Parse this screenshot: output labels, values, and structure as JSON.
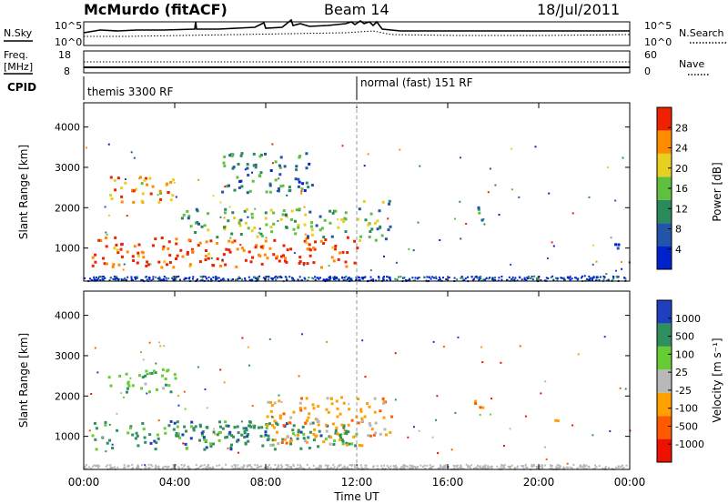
{
  "header": {
    "station": "McMurdo (fitACF)",
    "beam": "Beam 14",
    "date": "18/Jul/2011"
  },
  "noise_panel": {
    "left_label": "N.Sky",
    "right_label": "N.Search",
    "ytick_top_left": "10^5",
    "ytick_bottom_left": "10^0",
    "ytick_top_right": "10^5",
    "ytick_bottom_right": "10^0"
  },
  "freq_panel": {
    "left_label_line1": "Freq.",
    "left_label_line2": "[MHz]",
    "right_label": "Nave",
    "ytick_top_left": "18",
    "ytick_bottom_left": "8",
    "ytick_top_right": "60",
    "ytick_bottom_right": "0"
  },
  "cpid": {
    "label": "CPID",
    "segments": [
      {
        "text": "themis 3300 RF",
        "start_hour": 0
      },
      {
        "text": "normal (fast) 151 RF",
        "start_hour": 12
      }
    ]
  },
  "x_axis": {
    "title": "Time UT",
    "ticks": [
      "00:00",
      "04:00",
      "08:00",
      "12:00",
      "16:00",
      "20:00",
      "00:00"
    ],
    "hours": [
      0,
      4,
      8,
      12,
      16,
      20,
      24
    ]
  },
  "colors": {
    "power": [
      "#0022cc",
      "#2255aa",
      "#2a8a5a",
      "#5fc040",
      "#e8d020",
      "#ff8c00",
      "#ee2200"
    ],
    "velocity": [
      "#ee1100",
      "#ff5a00",
      "#ffa000",
      "#b8b8b8",
      "#66cc33",
      "#2f8f5f",
      "#1f3fbf"
    ]
  },
  "chart_data": [
    {
      "type": "heatmap",
      "title": "",
      "xlabel": "",
      "ylabel": "Slant Range [km]",
      "y_ticks": [
        "1000",
        "2000",
        "3000",
        "4000"
      ],
      "y_tick_values": [
        1000,
        2000,
        3000,
        4000
      ],
      "ylim": [
        180,
        4600
      ],
      "xlim": [
        0,
        24
      ],
      "colorbar": {
        "label": "Power [dB]",
        "ticks": [
          "4",
          "8",
          "12",
          "16",
          "20",
          "24",
          "28"
        ],
        "range": [
          0,
          30
        ]
      },
      "regions": [
        {
          "x": [
            0.3,
            12.0
          ],
          "y": [
            550,
            1300
          ],
          "value": 28
        },
        {
          "x": [
            1.0,
            4.0
          ],
          "y": [
            2100,
            2800
          ],
          "value": 22
        },
        {
          "x": [
            4.0,
            11.5
          ],
          "y": [
            1300,
            2000
          ],
          "value": 14
        },
        {
          "x": [
            6.0,
            10.0
          ],
          "y": [
            2400,
            3400
          ],
          "value": 10
        },
        {
          "x": [
            12.0,
            13.5
          ],
          "y": [
            1200,
            2200
          ],
          "value": 12
        },
        {
          "x": [
            17.0,
            17.5
          ],
          "y": [
            1700,
            2100
          ],
          "value": 12
        },
        {
          "x": [
            23.1,
            23.5
          ],
          "y": [
            850,
            1200
          ],
          "value": 6
        }
      ]
    },
    {
      "type": "heatmap",
      "title": "",
      "xlabel": "Time UT",
      "ylabel": "Slant Range [km]",
      "y_ticks": [
        "1000",
        "2000",
        "3000",
        "4000"
      ],
      "y_tick_values": [
        1000,
        2000,
        3000,
        4000
      ],
      "ylim": [
        180,
        4600
      ],
      "xlim": [
        0,
        24
      ],
      "colorbar": {
        "label": "Velocity [m s⁻¹]",
        "ticks": [
          "-1000",
          "-500",
          "-100",
          "-25",
          "25",
          "100",
          "500",
          "1000"
        ]
      },
      "regions": [
        {
          "x": [
            0.3,
            12.0
          ],
          "y": [
            700,
            1400
          ],
          "value": 200
        },
        {
          "x": [
            4.0,
            8.0
          ],
          "y": [
            900,
            1400
          ],
          "value": 300
        },
        {
          "x": [
            1.0,
            4.0
          ],
          "y": [
            2100,
            2700
          ],
          "value": 100
        },
        {
          "x": [
            8.0,
            13.5
          ],
          "y": [
            800,
            2000
          ],
          "value": -120
        },
        {
          "x": [
            17.0,
            17.5
          ],
          "y": [
            1700,
            2100
          ],
          "value": -120
        },
        {
          "x": [
            20.4,
            20.8
          ],
          "y": [
            1350,
            1600
          ],
          "value": -120
        }
      ]
    }
  ]
}
